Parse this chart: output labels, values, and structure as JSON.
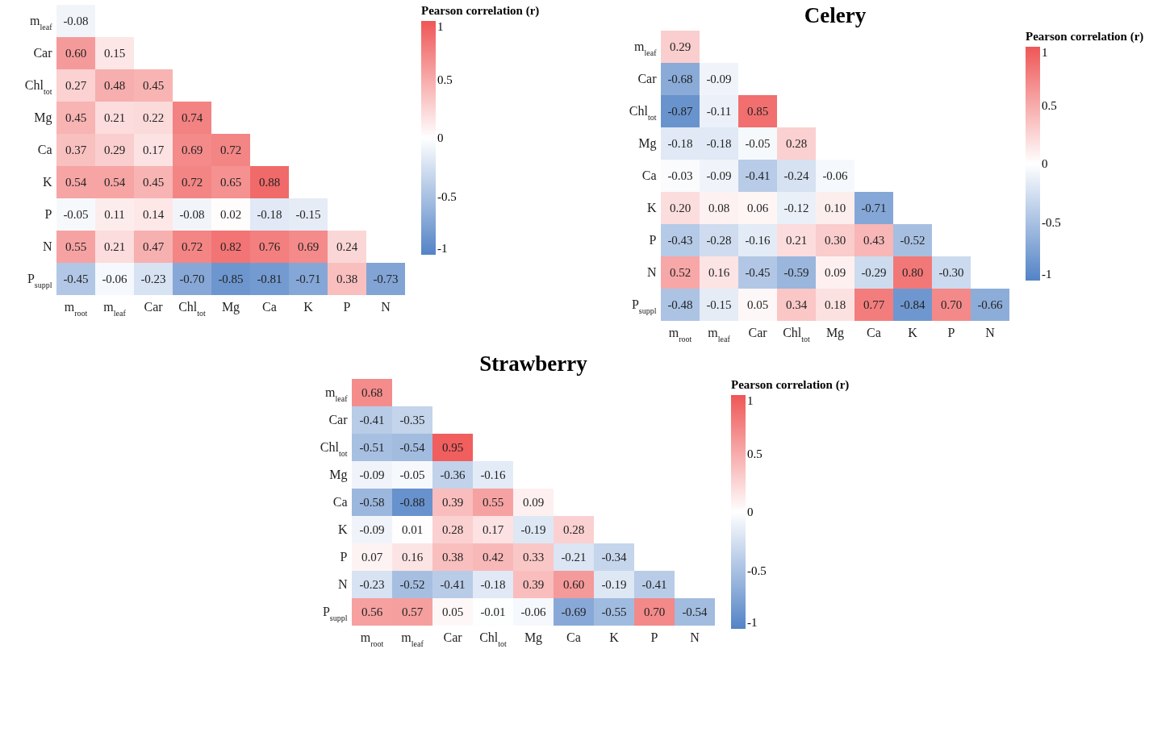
{
  "chart_data": [
    {
      "type": "heatmap",
      "categories": [
        "m$_{root}$",
        "m$_{leaf}$",
        "Car",
        "Chl$_{tot}$",
        "Mg",
        "Ca",
        "K",
        "P",
        "N"
      ],
      "y_categories": [
        "m$_{leaf}$",
        "Car",
        "Chl$_{tot}$",
        "Mg",
        "Ca",
        "K",
        "P",
        "N",
        "P$_{suppl}$"
      ],
      "cells": [
        [
          -0.08,
          null,
          null,
          null,
          null,
          null,
          null,
          null,
          null
        ],
        [
          0.6,
          0.15,
          null,
          null,
          null,
          null,
          null,
          null,
          null
        ],
        [
          0.27,
          0.48,
          0.45,
          null,
          null,
          null,
          null,
          null,
          null
        ],
        [
          0.45,
          0.21,
          0.22,
          0.74,
          null,
          null,
          null,
          null,
          null
        ],
        [
          0.37,
          0.29,
          0.17,
          0.69,
          0.72,
          null,
          null,
          null,
          null
        ],
        [
          0.54,
          0.54,
          0.45,
          0.72,
          0.65,
          0.88,
          null,
          null,
          null
        ],
        [
          -0.05,
          0.11,
          0.14,
          -0.08,
          0.02,
          -0.18,
          -0.15,
          null,
          null
        ],
        [
          0.55,
          0.21,
          0.47,
          0.72,
          0.82,
          0.76,
          0.69,
          0.24,
          null
        ],
        [
          -0.45,
          -0.06,
          -0.23,
          -0.7,
          -0.85,
          -0.81,
          -0.71,
          0.38,
          -0.73
        ]
      ],
      "cell_labels": [
        [
          "-0.08",
          null,
          null,
          null,
          null,
          null,
          null,
          null,
          null
        ],
        [
          "0.60",
          "0.15",
          null,
          null,
          null,
          null,
          null,
          null,
          null
        ],
        [
          "0.27",
          "0.48",
          "0.45",
          null,
          null,
          null,
          null,
          null,
          null
        ],
        [
          "0.45",
          "0.21",
          "0.22",
          "0.74",
          null,
          null,
          null,
          null,
          null
        ],
        [
          "0.37",
          "0.29",
          "0.17",
          "0.69",
          "0.72",
          null,
          null,
          null,
          null
        ],
        [
          "0.54",
          "0.54",
          "0.45",
          "0.72",
          "0.65",
          "0.88",
          null,
          null,
          null
        ],
        [
          "-0.05",
          "0.11",
          "0.14",
          "-0.08",
          "0.02",
          "-0.18",
          "-0.15",
          null,
          null
        ],
        [
          "0.55",
          "0.21",
          "0.47",
          "0.72",
          "0.82",
          "0.76",
          "0.69",
          "0.24",
          null
        ],
        [
          "-0.45",
          "-0.06",
          "-0.23",
          "-0.70",
          "-0.85",
          "-0.81",
          "-0.71",
          "0.38",
          "-0.73"
        ]
      ],
      "clabel": "Pearson correlation (r)",
      "clim": [
        -1,
        1
      ],
      "cticks": [
        -1,
        -0.5,
        0,
        0.5,
        1
      ]
    },
    {
      "type": "heatmap",
      "title": "Celery",
      "categories": [
        "m$_{root}$",
        "m$_{leaf}$",
        "Car",
        "Chl$_{tot}$",
        "Mg",
        "Ca",
        "K",
        "P",
        "N"
      ],
      "y_categories": [
        "m$_{leaf}$",
        "Car",
        "Chl$_{tot}$",
        "Mg",
        "Ca",
        "K",
        "P",
        "N",
        "P$_{suppl}$"
      ],
      "cells": [
        [
          0.29,
          null,
          null,
          null,
          null,
          null,
          null,
          null,
          null
        ],
        [
          -0.68,
          -0.09,
          null,
          null,
          null,
          null,
          null,
          null,
          null
        ],
        [
          -0.87,
          -0.11,
          0.85,
          null,
          null,
          null,
          null,
          null,
          null
        ],
        [
          -0.18,
          -0.18,
          -0.05,
          0.28,
          null,
          null,
          null,
          null,
          null
        ],
        [
          -0.03,
          -0.09,
          -0.41,
          -0.24,
          -0.06,
          null,
          null,
          null,
          null
        ],
        [
          0.2,
          0.08,
          0.06,
          -0.12,
          0.1,
          -0.71,
          null,
          null,
          null
        ],
        [
          -0.43,
          -0.28,
          -0.16,
          0.21,
          0.3,
          0.43,
          -0.52,
          null,
          null
        ],
        [
          0.52,
          0.16,
          -0.45,
          -0.59,
          0.09,
          -0.29,
          0.8,
          -0.3,
          null
        ],
        [
          -0.48,
          -0.15,
          0.05,
          0.34,
          0.18,
          0.77,
          -0.84,
          0.7,
          -0.66
        ]
      ],
      "cell_labels": [
        [
          "0.29",
          null,
          null,
          null,
          null,
          null,
          null,
          null,
          null
        ],
        [
          "-0.68",
          "-0.09",
          null,
          null,
          null,
          null,
          null,
          null,
          null
        ],
        [
          "-0.87",
          "-0.11",
          "0.85",
          null,
          null,
          null,
          null,
          null,
          null
        ],
        [
          "-0.18",
          "-0.18",
          "-0.05",
          "0.28",
          null,
          null,
          null,
          null,
          null
        ],
        [
          "-0.03",
          "-0.09",
          "-0.41",
          "-0.24",
          "-0.06",
          null,
          null,
          null,
          null
        ],
        [
          "0.20",
          "0.08",
          "0.06",
          "-0.12",
          "0.10",
          "-0.71",
          null,
          null,
          null
        ],
        [
          "-0.43",
          "-0.28",
          "-0.16",
          "0.21",
          "0.30",
          "0.43",
          "-0.52",
          null,
          null
        ],
        [
          "0.52",
          "0.16",
          "-0.45",
          "-0.59",
          "0.09",
          "-0.29",
          "0.80",
          "-0.30",
          null
        ],
        [
          "-0.48",
          "-0.15",
          "0.05",
          "0.34",
          "0.18",
          "0.77",
          "-0.84",
          "0.70",
          "-0.66"
        ]
      ],
      "clabel": "Pearson correlation (r)",
      "clim": [
        -1,
        1
      ],
      "cticks": [
        -1,
        -0.5,
        0,
        0.5,
        1
      ]
    },
    {
      "type": "heatmap",
      "title": "Strawberry",
      "categories": [
        "m$_{root}$",
        "m$_{leaf}$",
        "Car",
        "Chl$_{tot}$",
        "Mg",
        "Ca",
        "K",
        "P",
        "N"
      ],
      "y_categories": [
        "m$_{leaf}$",
        "Car",
        "Chl$_{tot}$",
        "Mg",
        "Ca",
        "K",
        "P",
        "N",
        "P$_{suppl}$"
      ],
      "cells": [
        [
          0.68,
          null,
          null,
          null,
          null,
          null,
          null,
          null,
          null
        ],
        [
          -0.41,
          -0.35,
          null,
          null,
          null,
          null,
          null,
          null,
          null
        ],
        [
          -0.51,
          -0.54,
          0.95,
          null,
          null,
          null,
          null,
          null,
          null
        ],
        [
          -0.09,
          -0.05,
          -0.36,
          -0.16,
          null,
          null,
          null,
          null,
          null
        ],
        [
          -0.58,
          -0.88,
          0.39,
          0.55,
          0.09,
          null,
          null,
          null,
          null
        ],
        [
          -0.09,
          0.01,
          0.28,
          0.17,
          -0.19,
          0.28,
          null,
          null,
          null
        ],
        [
          0.07,
          0.16,
          0.38,
          0.42,
          0.33,
          -0.21,
          -0.34,
          null,
          null
        ],
        [
          -0.23,
          -0.52,
          -0.41,
          -0.18,
          0.39,
          0.6,
          -0.19,
          -0.41,
          null
        ],
        [
          0.56,
          0.57,
          0.05,
          -0.01,
          -0.06,
          -0.69,
          -0.55,
          0.7,
          -0.54
        ]
      ],
      "cell_labels": [
        [
          "0.68",
          null,
          null,
          null,
          null,
          null,
          null,
          null,
          null
        ],
        [
          "-0.41",
          "-0.35",
          null,
          null,
          null,
          null,
          null,
          null,
          null
        ],
        [
          "-0.51",
          "-0.54",
          "0.95",
          null,
          null,
          null,
          null,
          null,
          null
        ],
        [
          "-0.09",
          "-0.05",
          "-0.36",
          "-0.16",
          null,
          null,
          null,
          null,
          null
        ],
        [
          "-0.58",
          "-0.88",
          "0.39",
          "0.55",
          "0.09",
          null,
          null,
          null,
          null
        ],
        [
          "-0.09",
          "0.01",
          "0.28",
          "0.17",
          "-0.19",
          "0.28",
          null,
          null,
          null
        ],
        [
          "0.07",
          "0.16",
          "0.38",
          "0.42",
          "0.33",
          "-0.21",
          "-0.34",
          null,
          null
        ],
        [
          "-0.23",
          "-0.52",
          "-0.41",
          "-0.18",
          "0.39",
          "0.60",
          "-0.19",
          "-0.41",
          null
        ],
        [
          "0.56",
          "0.57",
          "0.05",
          "-0.01",
          "-0.06",
          "-0.69",
          "-0.55",
          "0.70",
          "-0.54"
        ]
      ],
      "clabel": "Pearson correlation (r)",
      "clim": [
        -1,
        1
      ],
      "cticks": [
        -1,
        -0.5,
        0,
        0.5,
        1
      ]
    }
  ]
}
